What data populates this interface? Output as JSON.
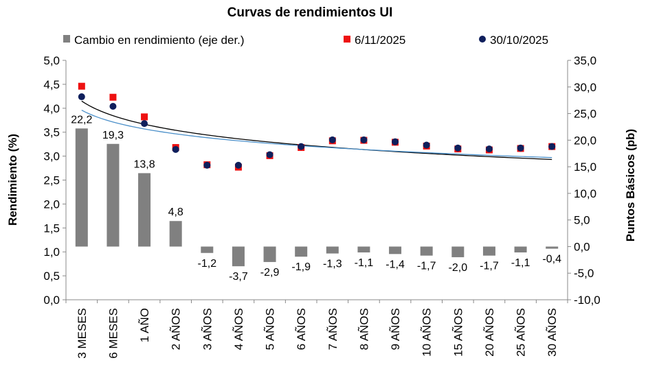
{
  "chart_data": {
    "type": "bar+scatter",
    "title": "Curvas de rendimientos UI",
    "ylabel_left": "Rendimiento (%)",
    "ylabel_right": "Puntos Básicos (pb)",
    "ylim_left": [
      0,
      5
    ],
    "yticks_left": [
      "0,0",
      "0,5",
      "1,0",
      "1,5",
      "2,0",
      "2,5",
      "3,0",
      "3,5",
      "4,0",
      "4,5",
      "5,0"
    ],
    "ylim_right": [
      -10,
      35
    ],
    "yticks_right": [
      "-10,0",
      "-5,0",
      "0,0",
      "5,0",
      "10,0",
      "15,0",
      "20,0",
      "25,0",
      "30,0",
      "35,0"
    ],
    "categories": [
      "3 MESES",
      "6 MESES",
      "1 AÑO",
      "2 AÑOS",
      "3 AÑOS",
      "4 AÑOS",
      "5 AÑOS",
      "6 AÑOS",
      "7 AÑOS",
      "8 AÑOS",
      "9 AÑOS",
      "10 AÑOS",
      "15 AÑOS",
      "20 AÑOS",
      "25 AÑOS",
      "30 AÑOS"
    ],
    "series": [
      {
        "name": "Cambio en rendimiento (eje der.)",
        "type": "bar",
        "axis": "right",
        "color": "#808080",
        "values": [
          22.2,
          19.3,
          13.8,
          4.8,
          -1.2,
          -3.7,
          -2.9,
          -1.9,
          -1.3,
          -1.1,
          -1.4,
          -1.7,
          -2.0,
          -1.7,
          -1.1,
          -0.4
        ],
        "data_labels": [
          "22,2",
          "19,3",
          "13,8",
          "4,8",
          "-1,2",
          "-3,7",
          "-2,9",
          "-1,9",
          "-1,3",
          "-1,1",
          "-1,4",
          "-1,7",
          "-2,0",
          "-1,7",
          "-1,1",
          "-0,4"
        ]
      },
      {
        "name": "6/11/2025",
        "type": "scatter",
        "axis": "left",
        "marker": "square",
        "color": "#ee1111",
        "values": [
          4.46,
          4.23,
          3.82,
          3.18,
          2.82,
          2.77,
          3.01,
          3.18,
          3.32,
          3.33,
          3.29,
          3.21,
          3.15,
          3.13,
          3.16,
          3.2
        ]
      },
      {
        "name": "30/10/2025",
        "type": "scatter",
        "axis": "left",
        "marker": "circle",
        "color": "#0f1f5c",
        "values": [
          4.24,
          4.04,
          3.68,
          3.14,
          2.81,
          2.81,
          3.03,
          3.2,
          3.34,
          3.34,
          3.3,
          3.23,
          3.17,
          3.15,
          3.17,
          3.2
        ]
      }
    ],
    "trendlines": [
      {
        "of": "6/11/2025",
        "kind": "log",
        "color": "#000000",
        "values_at_ends": [
          4.15,
          2.93
        ]
      },
      {
        "of": "30/10/2025",
        "kind": "log",
        "color": "#4a8fc9",
        "values_at_ends": [
          3.96,
          2.97
        ]
      }
    ]
  }
}
